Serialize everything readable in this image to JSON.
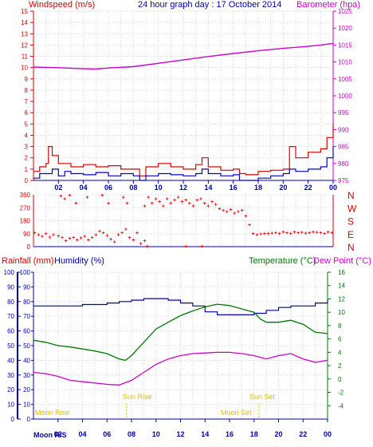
{
  "header": {
    "left_label": "Windspeed (m/s)",
    "center_title": "24 hour graph day : 17 October 2014",
    "right_label": "Barometer (hpa)"
  },
  "wind_panel": {
    "direction_letters": [
      "N",
      "W",
      "S",
      "E",
      "N"
    ],
    "dir_ticks": [
      "360",
      "270",
      "180",
      "90",
      "0"
    ]
  },
  "bottom_panel": {
    "rainfall_label": "Rainfall (mm)",
    "humidity_label": "Humidity (%)",
    "temperature_label": "Temperature (°C)",
    "dewpoint_label": "Dew Point (°C)",
    "sun_rise_label": "Sun Rise",
    "sun_set_label": "Sun Set",
    "moon_rise_label": "Moon Rise",
    "moon_set_label": "Moon Set",
    "bottom_left_label": "Moon R/S"
  },
  "colors": {
    "wind_axis": "#d80000",
    "pressure": "#cc00cc",
    "gust": "#d80000",
    "windspeed": "#0000cc",
    "humidity": "#0000aa",
    "temperature": "#007700",
    "dewpoint": "#cc00cc",
    "rainfall_axis": "#0000aa",
    "sun_moon": "#e0c000",
    "grid": "#d8d8d8"
  },
  "chart_data": [
    {
      "type": "line",
      "name": "wind-and-barometer",
      "x_unit": "hour",
      "xlim": [
        0,
        24
      ],
      "x_ticks": [
        "02",
        "04",
        "06",
        "08",
        "10",
        "12",
        "14",
        "16",
        "18",
        "20",
        "22",
        "00"
      ],
      "ylim_left": [
        0,
        15
      ],
      "y_ticks_left": [
        "0",
        "1",
        "2",
        "3",
        "4",
        "5",
        "6",
        "7",
        "8",
        "9",
        "10",
        "11",
        "12",
        "13",
        "14",
        "15"
      ],
      "ylim_right": [
        975,
        1025
      ],
      "y_ticks_right": [
        "975",
        "980",
        "985",
        "990",
        "995",
        "1000",
        "1005",
        "1010",
        "1015",
        "1020",
        "1025"
      ],
      "series": [
        {
          "axis": "right",
          "x": [
            0,
            2,
            4,
            5,
            6,
            8,
            10,
            12,
            14,
            16,
            18,
            20,
            22,
            23,
            24
          ],
          "y": [
            1008.5,
            1008.3,
            1008.0,
            1007.9,
            1008.2,
            1008.6,
            1009.6,
            1010.6,
            1011.6,
            1012.5,
            1013.3,
            1014.0,
            1014.6,
            1015.0,
            1015.5
          ]
        },
        {
          "axis": "left",
          "x": [
            0,
            0.5,
            1,
            1.2,
            1.5,
            2,
            3,
            4,
            5,
            6,
            7,
            8,
            8.5,
            9,
            10,
            11,
            12,
            13,
            13.5,
            14,
            15,
            16,
            16.5,
            17,
            18,
            19,
            20,
            20.5,
            21,
            22,
            23,
            23.5,
            24
          ],
          "y": [
            0.8,
            1.2,
            1.5,
            3.0,
            2.2,
            1.5,
            1.2,
            1.4,
            1.2,
            1.3,
            1.0,
            1.0,
            0.4,
            1.2,
            1.5,
            1.2,
            1.0,
            1.4,
            2.0,
            1.2,
            0.9,
            1.0,
            0.6,
            0.5,
            0.8,
            0.9,
            1.0,
            3.0,
            2.0,
            2.5,
            2.8,
            3.8,
            5.0
          ]
        },
        {
          "axis": "left",
          "x": [
            0,
            0.5,
            1,
            1.5,
            2,
            2.5,
            3,
            4,
            5,
            6,
            7,
            8,
            8.5,
            9,
            10,
            11,
            12,
            13,
            13.5,
            14,
            15,
            16,
            16.5,
            17,
            18,
            19,
            20,
            20.5,
            21,
            22,
            23,
            23.5,
            24
          ],
          "y": [
            0.2,
            0.6,
            0.6,
            1.0,
            0.4,
            0.8,
            0.6,
            0.5,
            0.7,
            0.4,
            0.6,
            0.4,
            0.0,
            0.4,
            0.6,
            0.5,
            0.4,
            0.6,
            1.0,
            0.6,
            0.4,
            0.5,
            0.0,
            0.0,
            0.2,
            0.4,
            0.6,
            1.0,
            0.8,
            1.0,
            1.2,
            2.0,
            3.0
          ]
        }
      ]
    },
    {
      "type": "scatter",
      "name": "wind-direction",
      "xlim": [
        0,
        24
      ],
      "ylim": [
        0,
        360
      ],
      "x": [
        0.1,
        0.4,
        0.7,
        1.0,
        1.3,
        1.6,
        2.0,
        2.3,
        2.6,
        2.9,
        3.2,
        3.5,
        3.8,
        4.1,
        4.4,
        4.7,
        5.0,
        5.3,
        5.6,
        5.9,
        6.2,
        6.5,
        6.8,
        7.1,
        7.4,
        7.7,
        8.0,
        8.3,
        8.6,
        8.9,
        9.2,
        9.5,
        9.8,
        10.1,
        10.4,
        10.7,
        11.0,
        11.3,
        11.6,
        11.9,
        12.2,
        12.5,
        12.8,
        13.1,
        13.4,
        13.7,
        14.0,
        14.3,
        14.6,
        14.9,
        15.2,
        15.5,
        15.8,
        16.1,
        16.4,
        16.7,
        17.0,
        17.3,
        17.6,
        17.9,
        18.2,
        18.5,
        18.8,
        19.1,
        19.4,
        19.7,
        20.0,
        20.3,
        20.6,
        20.9,
        21.2,
        21.5,
        21.8,
        22.1,
        22.4,
        22.7,
        23.0,
        23.3,
        23.6,
        23.9,
        2.2,
        2.5,
        2.9,
        3.4,
        4.3,
        5.5,
        6.0,
        7.2,
        7.5,
        8.9,
        9.1,
        13.5,
        12.2
      ],
      "y": [
        95,
        80,
        70,
        90,
        65,
        80,
        72,
        60,
        40,
        55,
        60,
        45,
        58,
        70,
        45,
        60,
        80,
        105,
        95,
        75,
        50,
        30,
        80,
        95,
        120,
        60,
        45,
        95,
        20,
        40,
        340,
        300,
        330,
        310,
        280,
        330,
        300,
        320,
        340,
        310,
        320,
        300,
        280,
        320,
        330,
        300,
        280,
        310,
        290,
        260,
        250,
        240,
        255,
        230,
        240,
        250,
        210,
        150,
        90,
        80,
        85,
        88,
        90,
        92,
        95,
        88,
        100,
        95,
        90,
        100,
        95,
        98,
        92,
        95,
        100,
        96,
        95,
        90,
        100,
        95,
        350,
        330,
        355,
        300,
        340,
        355,
        300,
        340,
        300,
        280,
        0,
        0,
        0
      ]
    },
    {
      "type": "line",
      "name": "temperature-humidity",
      "xlim": [
        0,
        24
      ],
      "x_ticks": [
        "02",
        "04",
        "06",
        "08",
        "10",
        "12",
        "14",
        "16",
        "18",
        "20",
        "22",
        "00"
      ],
      "ylim_left": [
        0,
        100
      ],
      "y_ticks_left": [
        "0",
        "10",
        "20",
        "30",
        "40",
        "50",
        "60",
        "70",
        "80",
        "90",
        "100"
      ],
      "ylim_right": [
        -6,
        16
      ],
      "y_ticks_right": [
        "-4",
        "-2",
        "0",
        "2",
        "4",
        "6",
        "8",
        "10",
        "12",
        "14",
        "16"
      ],
      "series": [
        {
          "axis": "left",
          "x": [
            0,
            2,
            4,
            6,
            7,
            8,
            9,
            10,
            11,
            12,
            13,
            14,
            15,
            16,
            17,
            18,
            19,
            20,
            21,
            22,
            23,
            24
          ],
          "y": [
            77,
            77,
            78,
            79,
            80,
            81,
            82,
            82,
            81,
            79,
            77,
            73,
            71,
            71,
            71,
            72,
            74,
            76,
            77,
            77,
            79,
            81
          ]
        },
        {
          "axis": "right",
          "x": [
            0,
            1,
            2,
            3,
            4,
            5,
            6,
            7,
            7.5,
            8,
            9,
            10,
            11,
            12,
            13,
            14,
            15,
            16,
            17,
            18,
            18.5,
            19,
            20,
            21,
            22,
            23,
            24
          ],
          "y": [
            5.8,
            5.5,
            5.0,
            4.8,
            4.5,
            4.2,
            3.8,
            3.0,
            2.8,
            3.5,
            5.5,
            7.5,
            8.5,
            9.5,
            10.2,
            10.8,
            11.2,
            11.0,
            10.5,
            10.0,
            9.0,
            8.5,
            8.5,
            8.8,
            8.2,
            7.0,
            6.8
          ]
        },
        {
          "axis": "right",
          "x": [
            0,
            1,
            2,
            3,
            4,
            5,
            6,
            7,
            8,
            9,
            10,
            11,
            12,
            13,
            14,
            15,
            16,
            17,
            18,
            19,
            20,
            21,
            22,
            23,
            24
          ],
          "y": [
            1.0,
            0.8,
            0.4,
            -0.2,
            -0.4,
            -0.6,
            -0.8,
            -0.9,
            -0.2,
            1.0,
            2.2,
            3.0,
            3.5,
            3.8,
            3.9,
            4.0,
            4.0,
            3.8,
            3.5,
            3.0,
            3.5,
            3.8,
            3.0,
            2.5,
            2.8
          ]
        }
      ]
    }
  ]
}
